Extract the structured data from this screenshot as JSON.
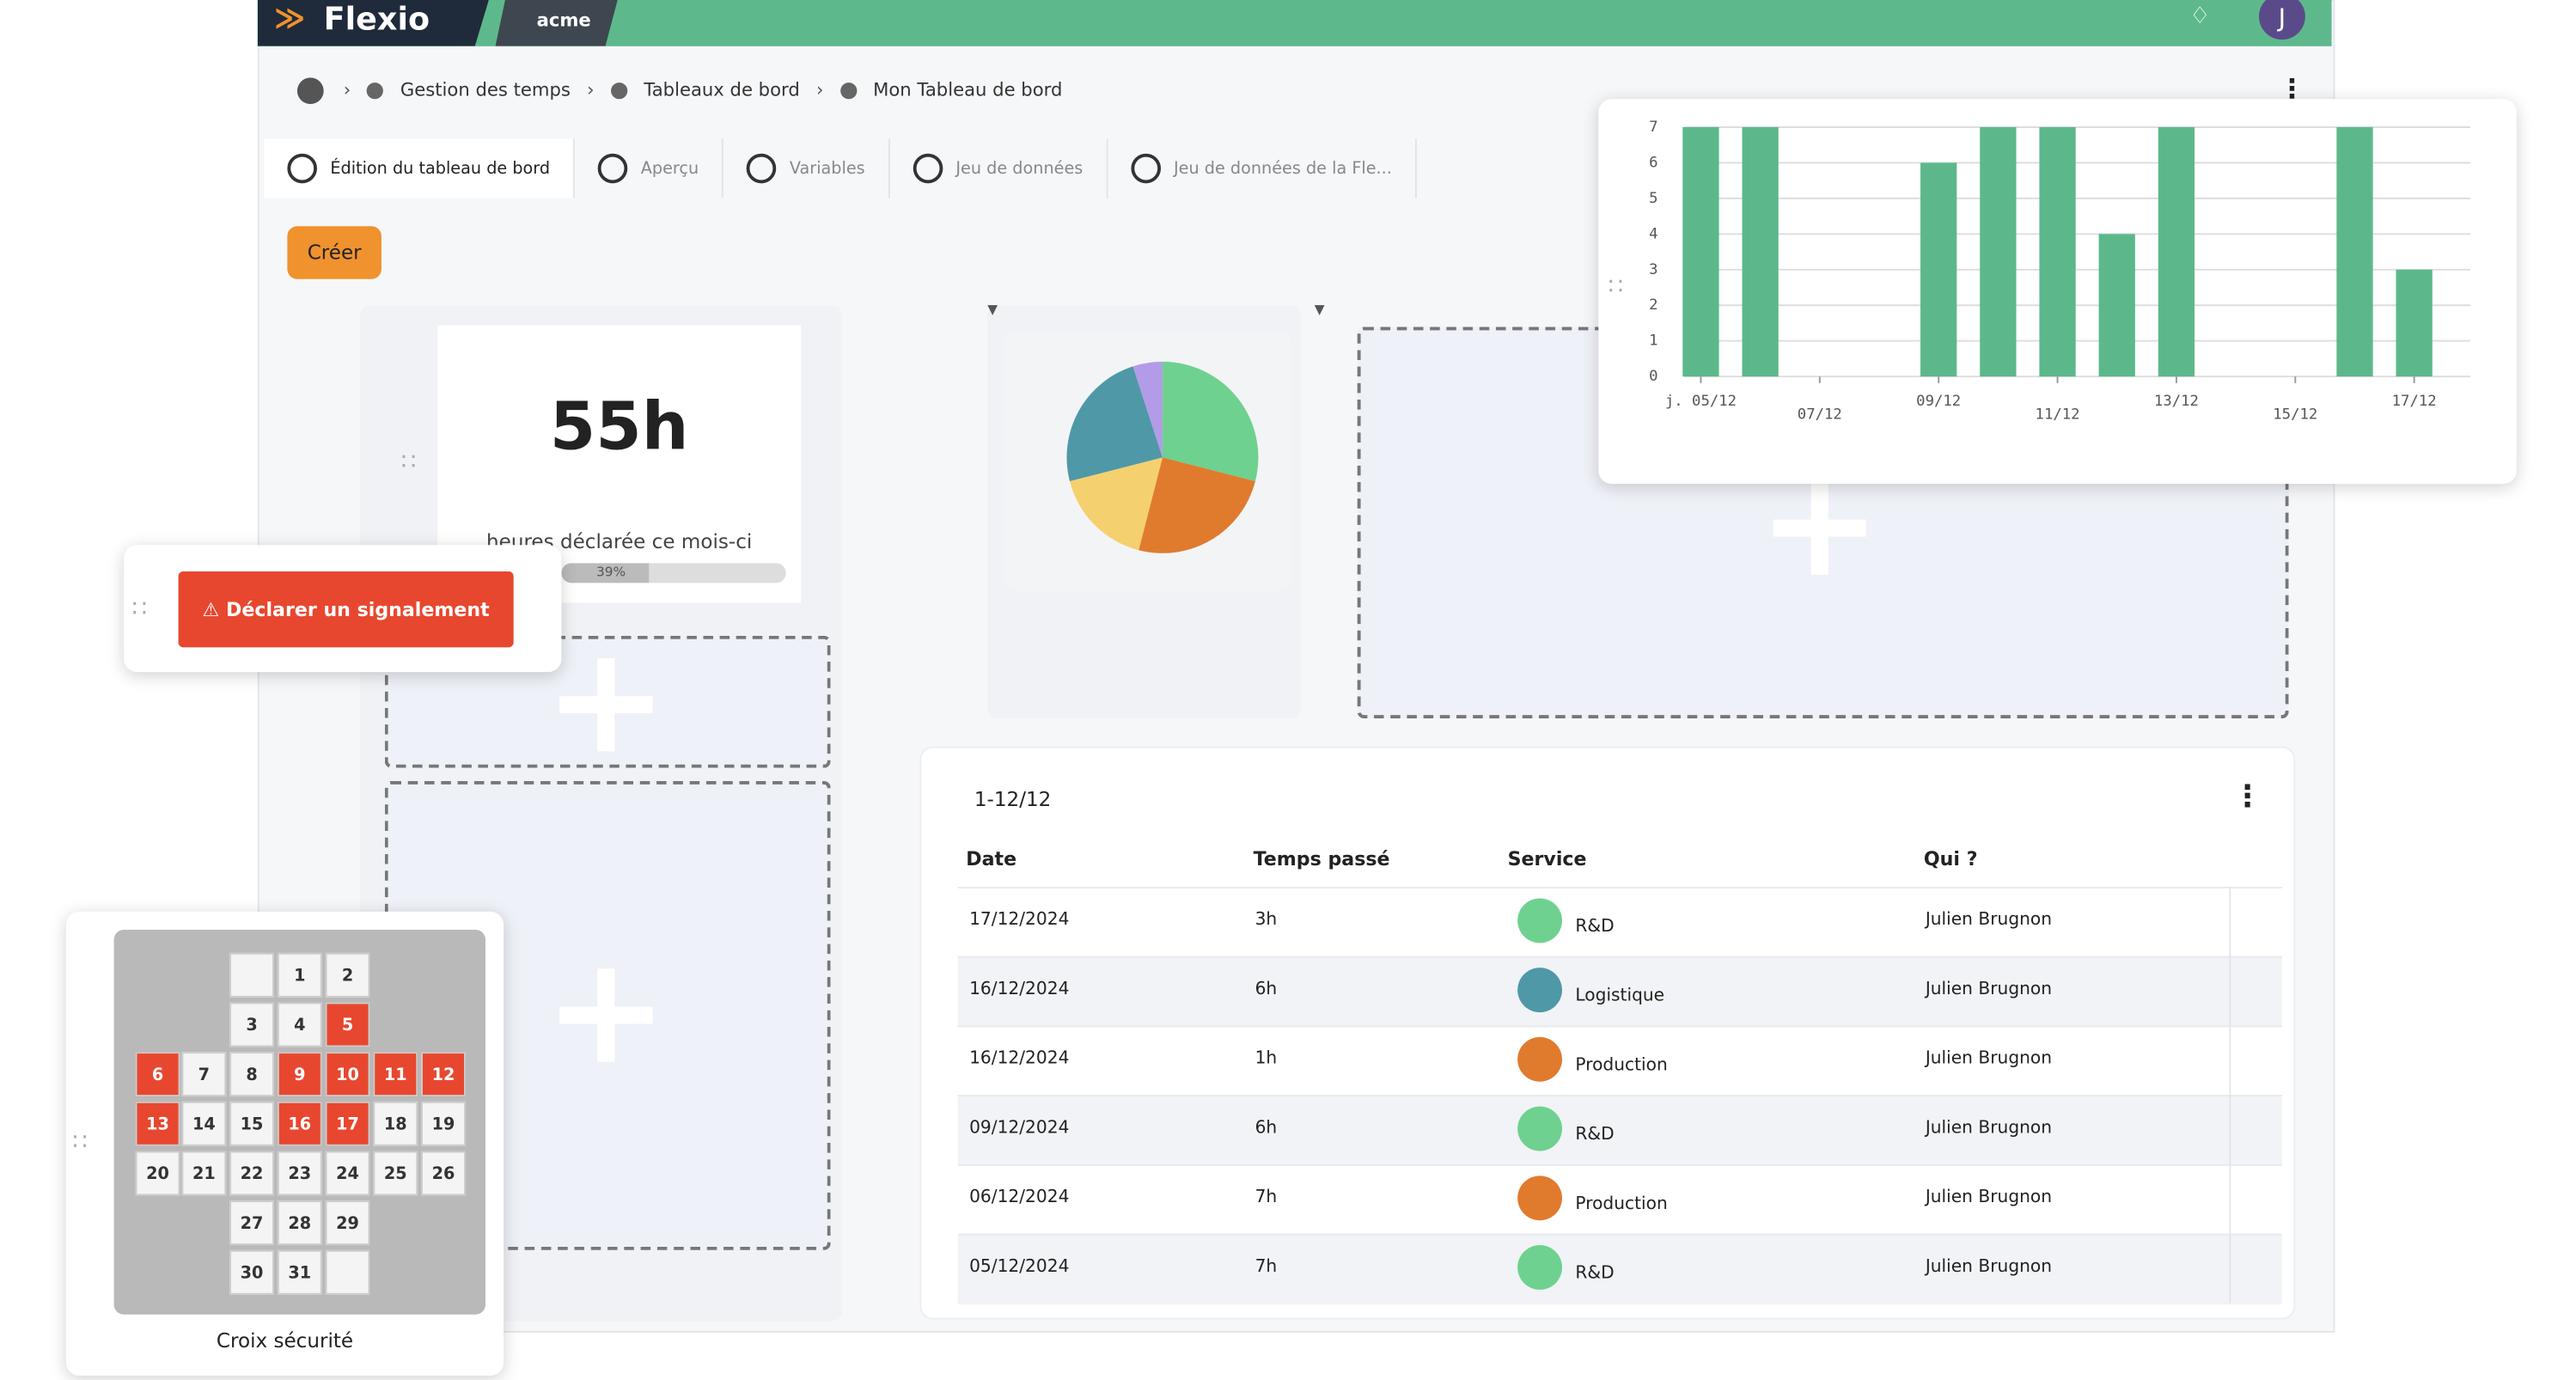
{
  "header": {
    "logo": "Flexio",
    "tenant": "acme",
    "avatar": "J"
  },
  "breadcrumb": [
    "Gestion des temps",
    "Tableaux de bord",
    "Mon Tableau de bord"
  ],
  "tabs": [
    "Édition du tableau de bord",
    "Aperçu",
    "Variables",
    "Jeu de données",
    "Jeu de données de la Fle..."
  ],
  "create_button": "Créer",
  "kpi": {
    "value": "55h",
    "label": "heures déclarée ce mois-ci",
    "progress": 39,
    "progress_label": "39%"
  },
  "alert_button": "Déclarer un signalement",
  "chart_data": [
    {
      "type": "bar",
      "categories": [
        "j. 05/12",
        null,
        "07/12",
        null,
        "09/12",
        null,
        "11/12",
        null,
        "13/12",
        null,
        "15/12",
        null,
        "17/12"
      ],
      "values": [
        7,
        7,
        0,
        0,
        6,
        7,
        7,
        4,
        7,
        0,
        0,
        7,
        3
      ],
      "color": "#5cb88a",
      "ylim": [
        0,
        7
      ],
      "yticks": [
        0,
        1,
        2,
        3,
        4,
        5,
        6,
        7
      ],
      "grid": true
    },
    {
      "type": "pie",
      "values": [
        29,
        25,
        17,
        24,
        5
      ],
      "colors": [
        "#6fd18f",
        "#e07b2e",
        "#f5d06f",
        "#4f98a8",
        "#b29ce8"
      ]
    }
  ],
  "table": {
    "title": "1-12/12",
    "columns": [
      "Date",
      "Temps passé",
      "Service",
      "Qui ?"
    ],
    "rows": [
      {
        "date": "17/12/2024",
        "time": "3h",
        "service": "R&D",
        "color": "#6fd18f",
        "who": "Julien Brugnon"
      },
      {
        "date": "16/12/2024",
        "time": "6h",
        "service": "Logistique",
        "color": "#4f98a8",
        "who": "Julien Brugnon"
      },
      {
        "date": "16/12/2024",
        "time": "1h",
        "service": "Production",
        "color": "#e07b2e",
        "who": "Julien Brugnon"
      },
      {
        "date": "09/12/2024",
        "time": "6h",
        "service": "R&D",
        "color": "#6fd18f",
        "who": "Julien Brugnon"
      },
      {
        "date": "06/12/2024",
        "time": "7h",
        "service": "Production",
        "color": "#e07b2e",
        "who": "Julien Brugnon"
      },
      {
        "date": "05/12/2024",
        "time": "7h",
        "service": "R&D",
        "color": "#6fd18f",
        "who": "Julien Brugnon"
      }
    ]
  },
  "calendar": {
    "title": "Croix sécurité",
    "days": [
      1,
      2,
      3,
      4,
      5,
      6,
      7,
      8,
      9,
      10,
      11,
      12,
      13,
      14,
      15,
      16,
      17,
      18,
      19,
      20,
      21,
      22,
      23,
      24,
      25,
      26,
      27,
      28,
      29,
      30,
      31
    ],
    "alerts": [
      false,
      false,
      false,
      false,
      true,
      true,
      false,
      false,
      true,
      true,
      true,
      true,
      true,
      false,
      false,
      true,
      true,
      false,
      false,
      false,
      false,
      false,
      false,
      false,
      false,
      false,
      false,
      false,
      false,
      false,
      false
    ]
  }
}
